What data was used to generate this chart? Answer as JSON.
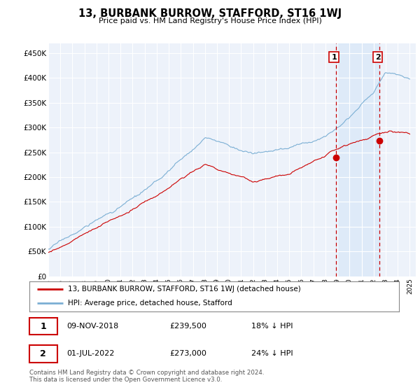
{
  "title": "13, BURBANK BURROW, STAFFORD, ST16 1WJ",
  "subtitle": "Price paid vs. HM Land Registry's House Price Index (HPI)",
  "ylabel_ticks": [
    "£0",
    "£50K",
    "£100K",
    "£150K",
    "£200K",
    "£250K",
    "£300K",
    "£350K",
    "£400K",
    "£450K"
  ],
  "ytick_values": [
    0,
    50000,
    100000,
    150000,
    200000,
    250000,
    300000,
    350000,
    400000,
    450000
  ],
  "ylim": [
    0,
    470000
  ],
  "xlim_start": 1995.0,
  "xlim_end": 2025.5,
  "sale1_date": 2018.86,
  "sale1_price": 239500,
  "sale1_label": "1",
  "sale2_date": 2022.5,
  "sale2_price": 273000,
  "sale2_label": "2",
  "legend_line1": "13, BURBANK BURROW, STAFFORD, ST16 1WJ (detached house)",
  "legend_line2": "HPI: Average price, detached house, Stafford",
  "footer": "Contains HM Land Registry data © Crown copyright and database right 2024.\nThis data is licensed under the Open Government Licence v3.0.",
  "hpi_color": "#7bafd4",
  "sale_color": "#cc0000",
  "background_color": "#ffffff",
  "plot_bg_color": "#edf2fa",
  "grid_color": "#ffffff",
  "vline_color": "#cc0000",
  "shade_color": "#d8e8f8"
}
